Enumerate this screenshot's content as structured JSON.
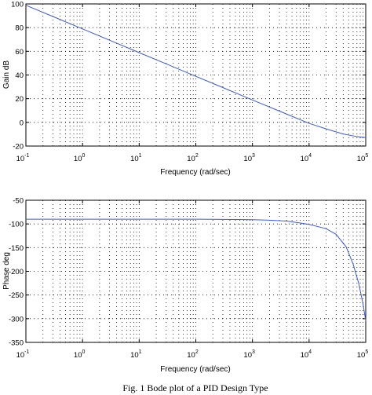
{
  "chart_data": [
    {
      "type": "line",
      "title": "",
      "xlabel": "Frequency (rad/sec)",
      "ylabel": "Gain dB",
      "xscale": "log",
      "xlim": [
        0.1,
        100000
      ],
      "ylim": [
        -20,
        100
      ],
      "xtick_bases": [
        "10",
        "10",
        "10",
        "10",
        "10",
        "10",
        "10"
      ],
      "xtick_exps": [
        "-1",
        "0",
        "1",
        "2",
        "3",
        "4",
        "5"
      ],
      "xticks": [
        0.1,
        1,
        10,
        100,
        1000,
        10000,
        100000
      ],
      "yticks": [
        -20,
        0,
        20,
        40,
        60,
        80,
        100
      ],
      "ytick_labels": [
        "-20",
        "0",
        "20",
        "40",
        "60",
        "80",
        "100"
      ],
      "grid": true,
      "color": "#3c5adc",
      "series": [
        {
          "x": [
            0.1,
            0.3,
            1,
            3,
            10,
            30,
            100,
            300,
            1000,
            3000,
            10000,
            20000,
            40000,
            70000,
            100000
          ],
          "values": [
            98.9,
            89.4,
            78.9,
            69.4,
            58.9,
            49.4,
            38.9,
            29.4,
            18.9,
            9.5,
            -0.8,
            -5.5,
            -9.8,
            -12.0,
            -12.8
          ]
        }
      ]
    },
    {
      "type": "line",
      "title": "",
      "xlabel": "Frequency (rad/sec)",
      "ylabel": "Phase deg",
      "xscale": "log",
      "xlim": [
        0.1,
        100000
      ],
      "ylim": [
        -350,
        -50
      ],
      "xtick_bases": [
        "10",
        "10",
        "10",
        "10",
        "10",
        "10",
        "10"
      ],
      "xtick_exps": [
        "-1",
        "0",
        "1",
        "2",
        "3",
        "4",
        "5"
      ],
      "xticks": [
        0.1,
        1,
        10,
        100,
        1000,
        10000,
        100000
      ],
      "yticks": [
        -350,
        -300,
        -250,
        -200,
        -150,
        -100,
        -50
      ],
      "ytick_labels": [
        "-350",
        "-300",
        "-250",
        "-200",
        "-150",
        "-100",
        "-50"
      ],
      "grid": true,
      "color": "#3c5adc",
      "series": [
        {
          "x": [
            0.1,
            1,
            10,
            100,
            500,
            1000,
            2000,
            4000,
            7000,
            10000,
            20000,
            30000,
            45000,
            60000,
            75000,
            90000,
            100000
          ],
          "values": [
            -90,
            -90,
            -90,
            -90,
            -90.5,
            -91,
            -92,
            -94,
            -98,
            -101,
            -110,
            -122,
            -148,
            -185,
            -225,
            -270,
            -305
          ]
        }
      ]
    }
  ],
  "caption": "Fig. 1 Bode plot of a PID Design Type"
}
